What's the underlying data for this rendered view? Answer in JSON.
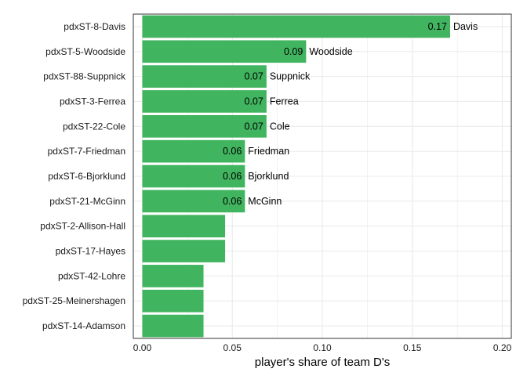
{
  "chart_data": {
    "type": "bar",
    "orientation": "horizontal",
    "categories": [
      "pdxST-8-Davis",
      "pdxST-5-Woodside",
      "pdxST-88-Suppnick",
      "pdxST-3-Ferrea",
      "pdxST-22-Cole",
      "pdxST-7-Friedman",
      "pdxST-6-Bjorklund",
      "pdxST-21-McGinn",
      "pdxST-2-Allison-Hall",
      "pdxST-17-Hayes",
      "pdxST-42-Lohre",
      "pdxST-25-Meinershagen",
      "pdxST-14-Adamson"
    ],
    "values": [
      0.171,
      0.091,
      0.069,
      0.069,
      0.069,
      0.057,
      0.057,
      0.057,
      0.046,
      0.046,
      0.034,
      0.034,
      0.034
    ],
    "value_labels": [
      "0.17",
      "0.09",
      "0.07",
      "0.07",
      "0.07",
      "0.06",
      "0.06",
      "0.06",
      "",
      "",
      "",
      "",
      ""
    ],
    "name_labels": [
      "Davis",
      "Woodside",
      "Suppnick",
      "Ferrea",
      "Cole",
      "Friedman",
      "Bjorklund",
      "McGinn",
      "",
      "",
      "",
      "",
      ""
    ],
    "title": "",
    "xlabel": "player's share of team D's",
    "ylabel": "",
    "xlim": [
      -0.005,
      0.205
    ],
    "xticks": [
      0.0,
      0.05,
      0.1,
      0.15,
      0.2
    ],
    "xtick_labels": [
      "0.00",
      "0.05",
      "0.10",
      "0.15",
      "0.20"
    ],
    "grid": true,
    "bar_color": "#41b45f",
    "grid_color": "#ebebeb",
    "border_color": "#333333"
  }
}
